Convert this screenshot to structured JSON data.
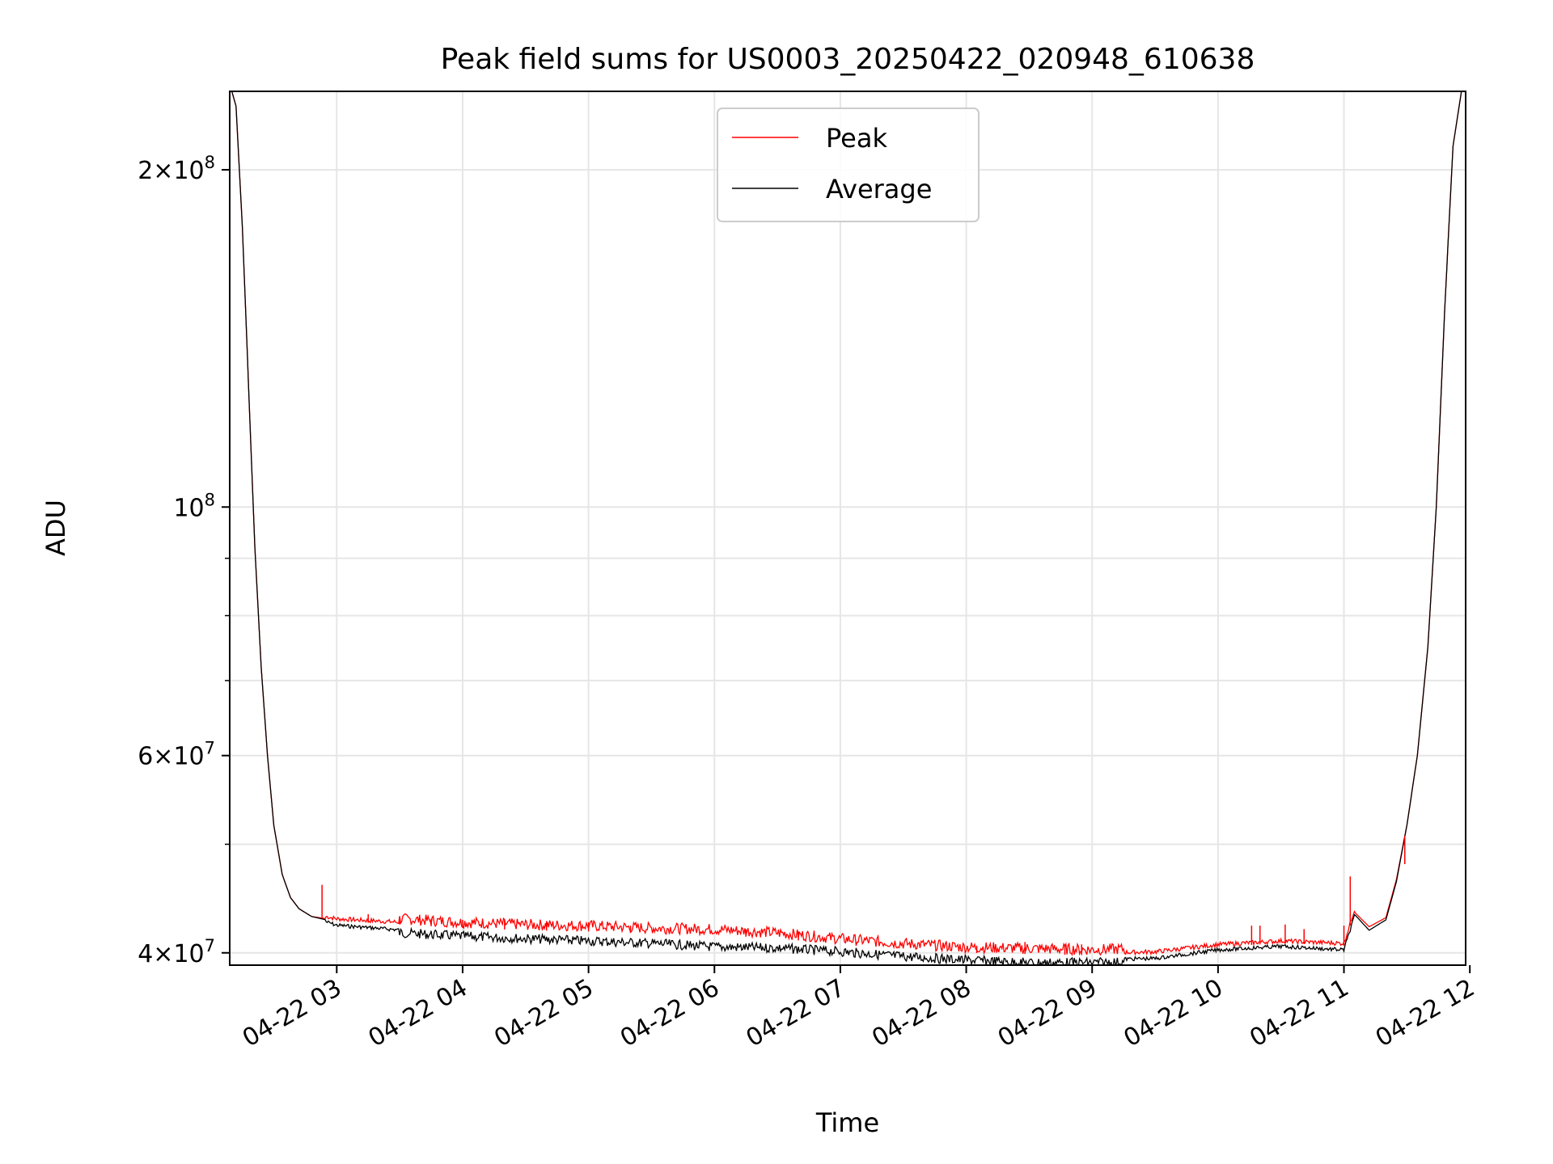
{
  "chart_data": {
    "type": "line",
    "title": "Peak field sums for US0003_20250422_020948_610638",
    "xlabel": "Time",
    "ylabel": "ADU",
    "yscale": "log",
    "xlim": [
      "2025-04-22 02:09",
      "2025-04-22 11:58"
    ],
    "ylim": [
      39000000,
      235000000
    ],
    "x_ticks": [
      "04-22 03",
      "04-22 04",
      "04-22 05",
      "04-22 06",
      "04-22 07",
      "04-22 08",
      "04-22 09",
      "04-22 10",
      "04-22 11",
      "04-22 12"
    ],
    "y_tick_labels": [
      {
        "value": 40000000,
        "mant": "4",
        "exp": "7"
      },
      {
        "value": 60000000,
        "mant": "6",
        "exp": "7"
      },
      {
        "value": 100000000,
        "mant": "",
        "exp": "8"
      },
      {
        "value": 200000000,
        "mant": "2",
        "exp": "8"
      }
    ],
    "y_minor_ticks": [
      50000000,
      70000000,
      80000000,
      90000000
    ],
    "grid": true,
    "legend": {
      "placement": "upper center"
    },
    "series": [
      {
        "name": "Peak",
        "color": "#ff0000",
        "x": [
          "2025-04-22 02:09",
          "2025-04-22 02:10",
          "2025-04-22 02:12",
          "2025-04-22 02:15",
          "2025-04-22 02:18",
          "2025-04-22 02:21",
          "2025-04-22 02:24",
          "2025-04-22 02:27",
          "2025-04-22 02:30",
          "2025-04-22 02:34",
          "2025-04-22 02:38",
          "2025-04-22 02:42",
          "2025-04-22 02:48",
          "2025-04-22 02:55",
          "2025-04-22 03:00",
          "2025-04-22 03:30",
          "2025-04-22 04:00",
          "2025-04-22 04:30",
          "2025-04-22 05:00",
          "2025-04-22 05:30",
          "2025-04-22 06:00",
          "2025-04-22 06:30",
          "2025-04-22 07:00",
          "2025-04-22 07:30",
          "2025-04-22 08:00",
          "2025-04-22 08:30",
          "2025-04-22 09:00",
          "2025-04-22 09:30",
          "2025-04-22 10:00",
          "2025-04-22 10:30",
          "2025-04-22 11:00",
          "2025-04-22 11:05",
          "2025-04-22 11:12",
          "2025-04-22 11:20",
          "2025-04-22 11:25",
          "2025-04-22 11:30",
          "2025-04-22 11:35",
          "2025-04-22 11:40",
          "2025-04-22 11:44",
          "2025-04-22 11:48",
          "2025-04-22 11:52",
          "2025-04-22 11:56",
          "2025-04-22 11:58"
        ],
        "y": [
          235000000,
          235000000,
          228000000,
          178000000,
          128000000,
          92000000,
          72000000,
          60000000,
          52000000,
          47000000,
          44800000,
          43800000,
          43100000,
          42900000,
          42700000,
          42400000,
          42100000,
          41900000,
          41800000,
          41600000,
          41500000,
          41200000,
          40700000,
          40300000,
          40000000,
          39900000,
          39800000,
          39900000,
          40500000,
          40800000,
          40600000,
          43500000,
          42200000,
          43000000,
          46500000,
          52000000,
          60000000,
          75000000,
          100000000,
          150000000,
          210000000,
          235000000,
          235000000
        ],
        "spikes": [
          {
            "x": "2025-04-22 02:53",
            "y": 46000000
          },
          {
            "x": "2025-04-22 03:15",
            "y": 43300000
          },
          {
            "x": "2025-04-22 03:30",
            "y": 43000000
          },
          {
            "x": "2025-04-22 03:45",
            "y": 42900000
          },
          {
            "x": "2025-04-22 04:00",
            "y": 42800000
          },
          {
            "x": "2025-04-22 04:20",
            "y": 42800000
          },
          {
            "x": "2025-04-22 04:40",
            "y": 42700000
          },
          {
            "x": "2025-04-22 05:00",
            "y": 42600000
          },
          {
            "x": "2025-04-22 05:20",
            "y": 42300000
          },
          {
            "x": "2025-04-22 06:15",
            "y": 42000000
          },
          {
            "x": "2025-04-22 06:40",
            "y": 41800000
          },
          {
            "x": "2025-04-22 08:05",
            "y": 40600000
          },
          {
            "x": "2025-04-22 08:28",
            "y": 40900000
          },
          {
            "x": "2025-04-22 08:47",
            "y": 40700000
          },
          {
            "x": "2025-04-22 08:55",
            "y": 40700000
          },
          {
            "x": "2025-04-22 10:16",
            "y": 42300000
          },
          {
            "x": "2025-04-22 10:20",
            "y": 42300000
          },
          {
            "x": "2025-04-22 10:32",
            "y": 42400000
          },
          {
            "x": "2025-04-22 10:41",
            "y": 42000000
          },
          {
            "x": "2025-04-22 11:00",
            "y": 42300000
          },
          {
            "x": "2025-04-22 11:03",
            "y": 46800000
          },
          {
            "x": "2025-04-22 11:29",
            "y": 48000000
          }
        ]
      },
      {
        "name": "Average",
        "color": "#000000",
        "x": [
          "2025-04-22 02:09",
          "2025-04-22 02:10",
          "2025-04-22 02:12",
          "2025-04-22 02:15",
          "2025-04-22 02:18",
          "2025-04-22 02:21",
          "2025-04-22 02:24",
          "2025-04-22 02:27",
          "2025-04-22 02:30",
          "2025-04-22 02:34",
          "2025-04-22 02:38",
          "2025-04-22 02:42",
          "2025-04-22 02:48",
          "2025-04-22 02:55",
          "2025-04-22 03:00",
          "2025-04-22 03:30",
          "2025-04-22 04:00",
          "2025-04-22 04:30",
          "2025-04-22 05:00",
          "2025-04-22 05:30",
          "2025-04-22 06:00",
          "2025-04-22 06:30",
          "2025-04-22 07:00",
          "2025-04-22 07:30",
          "2025-04-22 08:00",
          "2025-04-22 08:30",
          "2025-04-22 09:00",
          "2025-04-22 09:30",
          "2025-04-22 10:00",
          "2025-04-22 10:30",
          "2025-04-22 11:00",
          "2025-04-22 11:05",
          "2025-04-22 11:12",
          "2025-04-22 11:20",
          "2025-04-22 11:25",
          "2025-04-22 11:30",
          "2025-04-22 11:35",
          "2025-04-22 11:40",
          "2025-04-22 11:44",
          "2025-04-22 11:48",
          "2025-04-22 11:52",
          "2025-04-22 11:56",
          "2025-04-22 11:58"
        ],
        "y": [
          235000000,
          235000000,
          228000000,
          178000000,
          128000000,
          92000000,
          72000000,
          60000000,
          52000000,
          47000000,
          44800000,
          43800000,
          43100000,
          42800000,
          42500000,
          42100000,
          41800000,
          41600000,
          41400000,
          41200000,
          40900000,
          40800000,
          40500000,
          40100000,
          39800000,
          39600000,
          39600000,
          39700000,
          40400000,
          40700000,
          40400000,
          43300000,
          41900000,
          42800000,
          46300000,
          52000000,
          60000000,
          75000000,
          100000000,
          150000000,
          210000000,
          235000000,
          235000000
        ]
      }
    ]
  }
}
